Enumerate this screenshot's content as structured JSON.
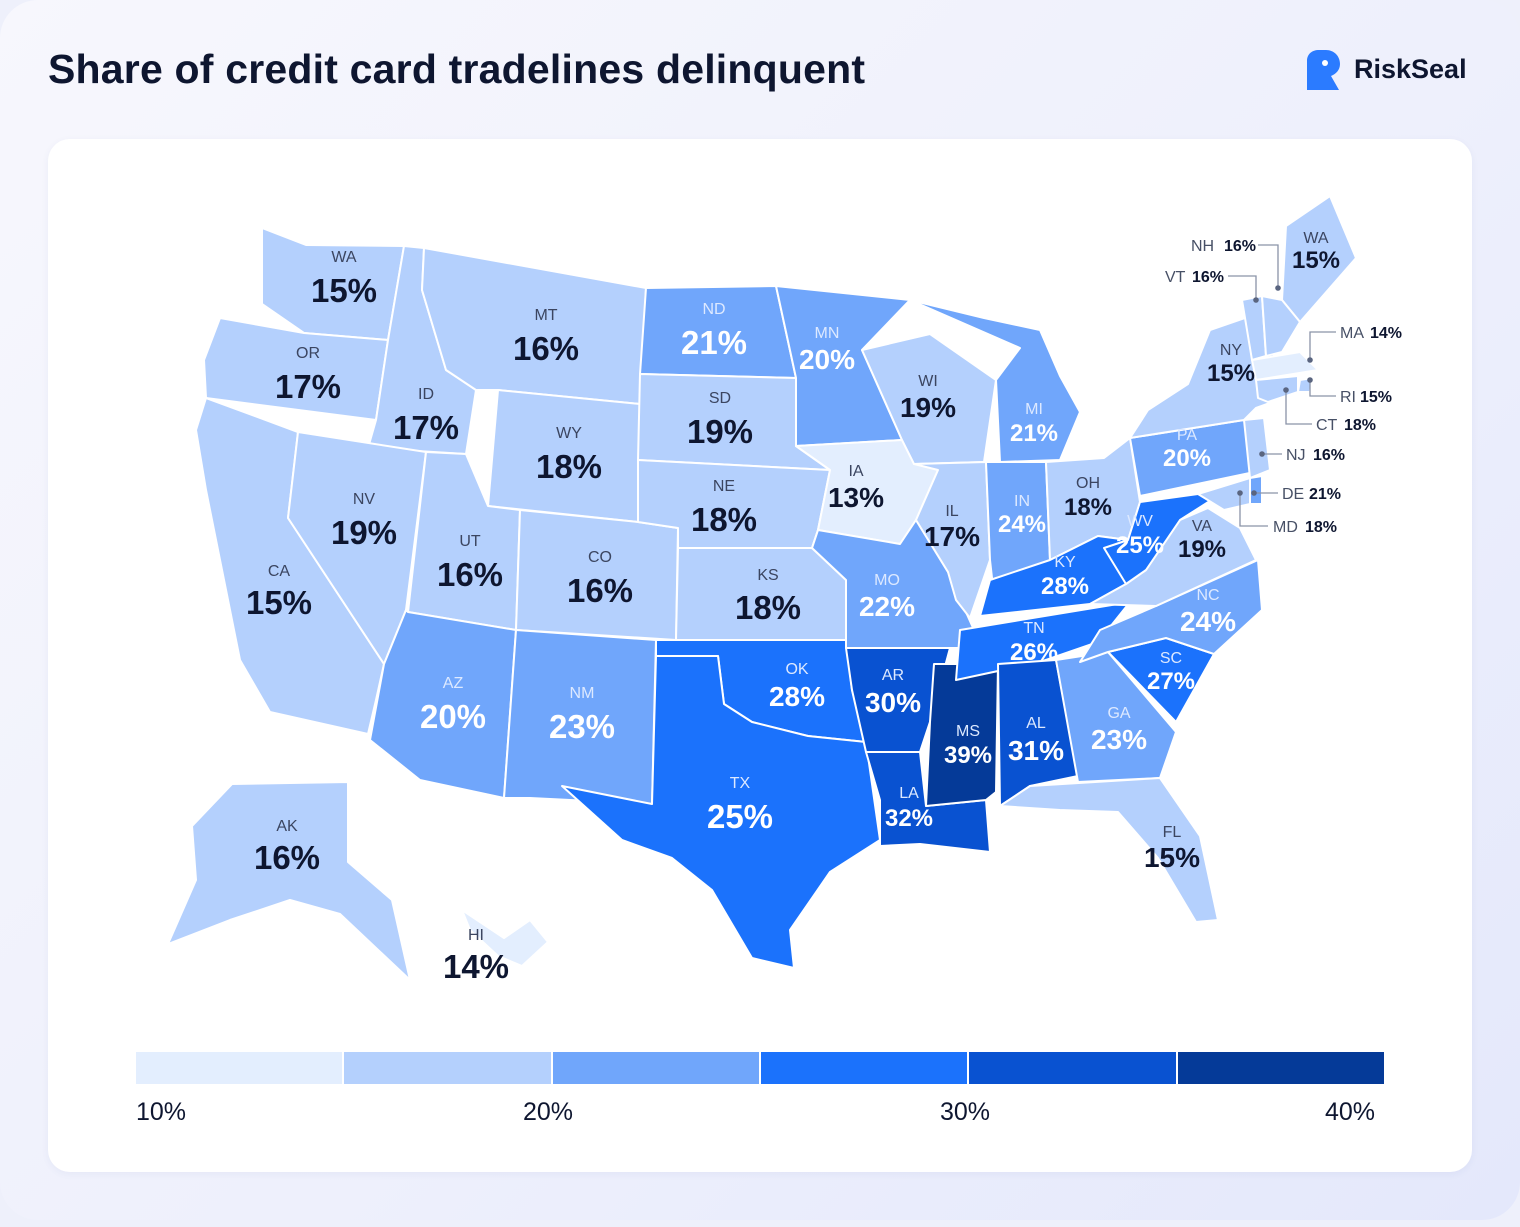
{
  "header": {
    "title": "Share of credit card tradelines delinquent",
    "brand_name": "RiskSeal",
    "brand_icon": "riskseal-logo-icon",
    "brand_color": "#2b7bff"
  },
  "chart_data": {
    "type": "choropleth",
    "region": "United States",
    "unit": "%",
    "scale": {
      "min": 10,
      "max": 40,
      "bins": [
        10,
        15,
        20,
        25,
        30,
        35,
        40
      ]
    },
    "states": [
      {
        "abbr": "WA",
        "value": 15
      },
      {
        "abbr": "OR",
        "value": 17
      },
      {
        "abbr": "CA",
        "value": 15
      },
      {
        "abbr": "ID",
        "value": 17
      },
      {
        "abbr": "NV",
        "value": 19
      },
      {
        "abbr": "MT",
        "value": 16
      },
      {
        "abbr": "WY",
        "value": 18
      },
      {
        "abbr": "UT",
        "value": 16
      },
      {
        "abbr": "AZ",
        "value": 20
      },
      {
        "abbr": "CO",
        "value": 16
      },
      {
        "abbr": "NM",
        "value": 23
      },
      {
        "abbr": "ND",
        "value": 21
      },
      {
        "abbr": "SD",
        "value": 19
      },
      {
        "abbr": "NE",
        "value": 18
      },
      {
        "abbr": "KS",
        "value": 18
      },
      {
        "abbr": "OK",
        "value": 28
      },
      {
        "abbr": "TX",
        "value": 25
      },
      {
        "abbr": "MN",
        "value": 20
      },
      {
        "abbr": "IA",
        "value": 13
      },
      {
        "abbr": "MO",
        "value": 22
      },
      {
        "abbr": "AR",
        "value": 30
      },
      {
        "abbr": "LA",
        "value": 32
      },
      {
        "abbr": "WI",
        "value": 19
      },
      {
        "abbr": "IL",
        "value": 17
      },
      {
        "abbr": "MS",
        "value": 39
      },
      {
        "abbr": "MI",
        "value": 21
      },
      {
        "abbr": "IN",
        "value": 24
      },
      {
        "abbr": "KY",
        "value": 28
      },
      {
        "abbr": "TN",
        "value": 26
      },
      {
        "abbr": "AL",
        "value": 31
      },
      {
        "abbr": "OH",
        "value": 18
      },
      {
        "abbr": "WV",
        "value": 25
      },
      {
        "abbr": "GA",
        "value": 23
      },
      {
        "abbr": "FL",
        "value": 15
      },
      {
        "abbr": "SC",
        "value": 27
      },
      {
        "abbr": "NC",
        "value": 24
      },
      {
        "abbr": "VA",
        "value": 19
      },
      {
        "abbr": "PA",
        "value": 20
      },
      {
        "abbr": "NY",
        "value": 15
      },
      {
        "abbr": "WA",
        "value": 15,
        "note": "label printed on Maine in the original"
      },
      {
        "abbr": "NH",
        "value": 16
      },
      {
        "abbr": "VT",
        "value": 16
      },
      {
        "abbr": "MA",
        "value": 14
      },
      {
        "abbr": "RI",
        "value": 15
      },
      {
        "abbr": "CT",
        "value": 18
      },
      {
        "abbr": "NJ",
        "value": 16
      },
      {
        "abbr": "DE",
        "value": 21
      },
      {
        "abbr": "MD",
        "value": 18
      },
      {
        "abbr": "AK",
        "value": 16
      },
      {
        "abbr": "HI",
        "value": 14
      }
    ]
  },
  "legend": {
    "colors": [
      "#e3eefe",
      "#b4d0fd",
      "#70a6fb",
      "#1b72fc",
      "#0952d1",
      "#053a98"
    ],
    "labels": [
      "10%",
      "20%",
      "30%",
      "40%"
    ]
  }
}
